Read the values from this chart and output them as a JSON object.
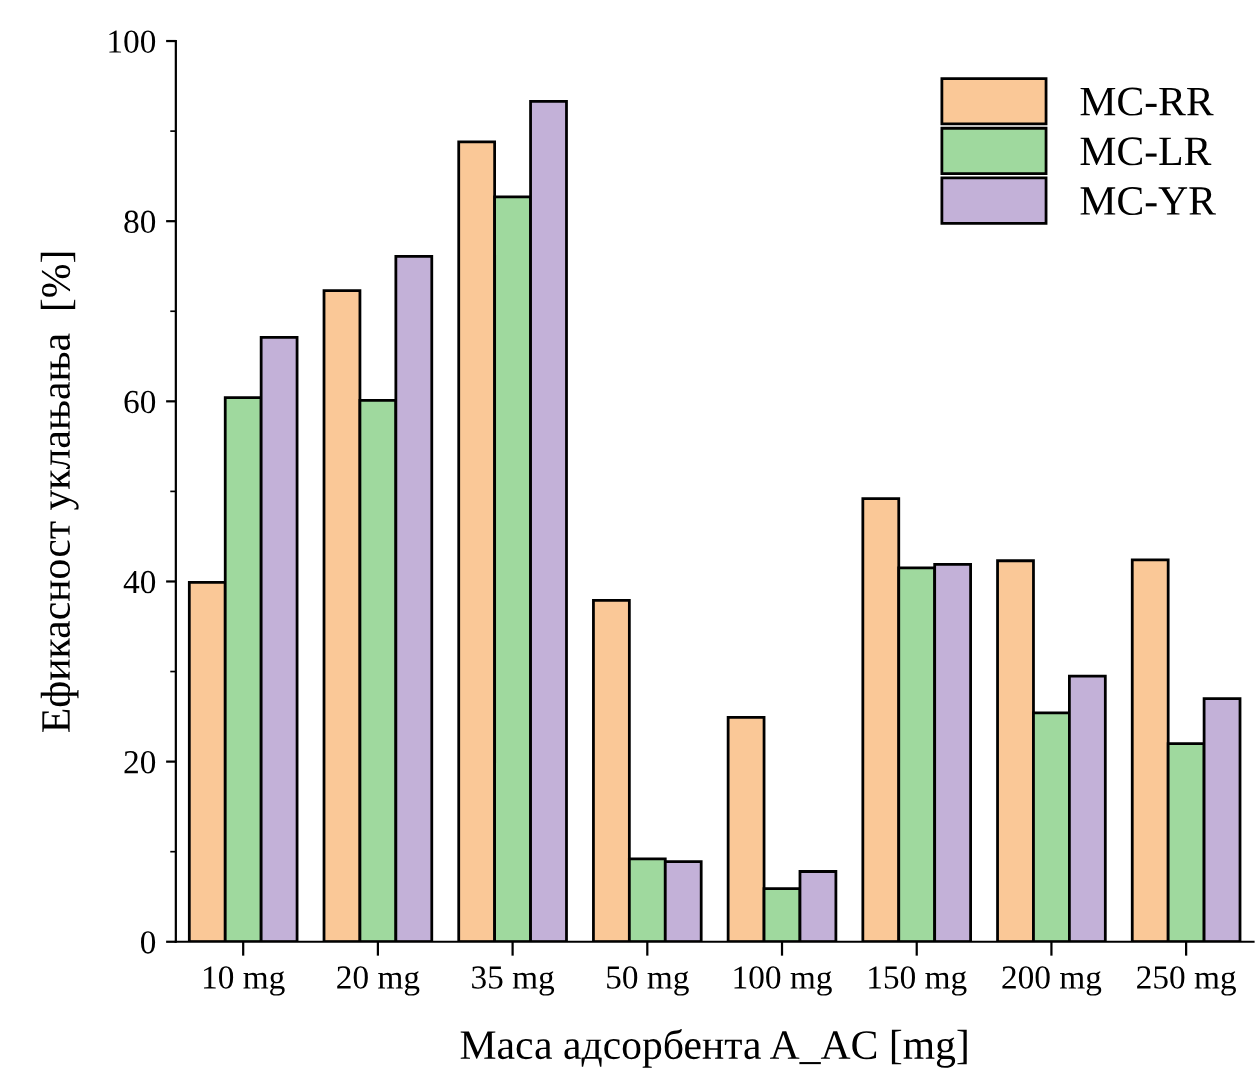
{
  "chart_data": {
    "type": "bar",
    "xlabel": "Маса адсорбента A_AC [mg]",
    "ylabel": "Ефикасност уклањања  [%]",
    "categories": [
      "10 mg",
      "20 mg",
      "35 mg",
      "50 mg",
      "100 mg",
      "150 mg",
      "200 mg",
      "250 mg"
    ],
    "series": [
      {
        "name": "MC-RR",
        "color": "#fac897",
        "values": [
          39.9,
          72.3,
          88.8,
          37.9,
          24.9,
          49.2,
          42.3,
          42.4
        ]
      },
      {
        "name": "MC-LR",
        "color": "#9fd99e",
        "values": [
          60.4,
          60.1,
          82.7,
          9.2,
          5.9,
          41.5,
          25.4,
          22.0
        ]
      },
      {
        "name": "MC-YR",
        "color": "#c3b1d8",
        "values": [
          67.1,
          76.1,
          93.3,
          8.9,
          7.8,
          41.9,
          29.5,
          27.0
        ]
      }
    ],
    "ylim": [
      0,
      100
    ],
    "yticks": [
      0,
      20,
      40,
      60,
      80,
      100
    ],
    "grid": false,
    "legend": "top right"
  }
}
